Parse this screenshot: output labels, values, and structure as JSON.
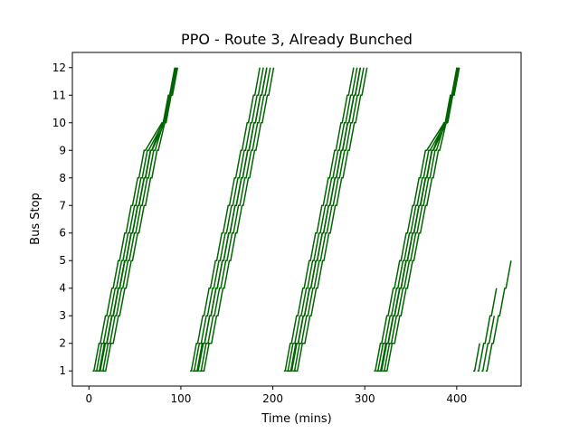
{
  "chart_data": {
    "type": "line",
    "title": "PPO - Route 3, Already Bunched",
    "xlabel": "Time (mins)",
    "ylabel": "Bus Stop",
    "xlim": [
      -18,
      470
    ],
    "ylim": [
      0.45,
      12.55
    ],
    "xticks": [
      0,
      100,
      200,
      300,
      400
    ],
    "yticks": [
      1,
      2,
      3,
      4,
      5,
      6,
      7,
      8,
      9,
      10,
      11,
      12
    ],
    "grid": false,
    "legend": "none",
    "line_color": "#006400",
    "trip_groups": [
      {
        "start": 4,
        "n_buses": 6,
        "spacing": 2.3,
        "stops": 12,
        "dwell": 1.4,
        "travel": 5.6,
        "early_spread": 1.6,
        "slow_leg": {
          "from_stop": 9,
          "base": 7,
          "extra": 2.2
        }
      },
      {
        "start": 110,
        "n_buses": 6,
        "spacing": 2.5,
        "stops": 12,
        "dwell": 1.4,
        "travel": 5.5,
        "early_spread": 1.6,
        "slow_leg": null
      },
      {
        "start": 212,
        "n_buses": 6,
        "spacing": 2.4,
        "stops": 12,
        "dwell": 1.4,
        "travel": 5.5,
        "early_spread": 1.6,
        "slow_leg": null
      },
      {
        "start": 310,
        "n_buses": 6,
        "spacing": 2.3,
        "stops": 12,
        "dwell": 1.4,
        "travel": 5.6,
        "early_spread": 1.6,
        "slow_leg": {
          "from_stop": 9,
          "base": 7,
          "extra": 2.4
        }
      },
      {
        "start": 418,
        "n_buses": 4,
        "spacing": 4.5,
        "stops": 5,
        "dwell": 1.4,
        "travel": 5.5,
        "early_spread": 0,
        "slow_leg": null,
        "stop_counts": [
          2,
          4,
          3,
          5
        ]
      }
    ]
  }
}
